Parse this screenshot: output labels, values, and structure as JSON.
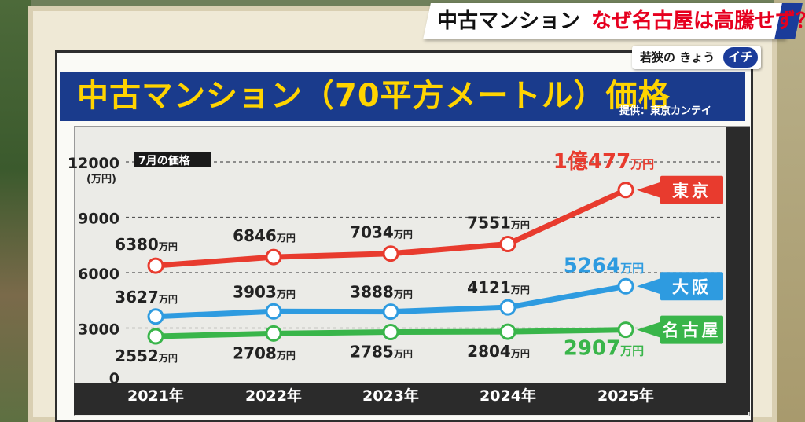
{
  "headline": {
    "part1": "中古マンション",
    "part2": "なぜ名古屋は高騰せず？"
  },
  "logo": {
    "text": "若狭の きょう",
    "badge": "イチ"
  },
  "board": {
    "title": "中古マンション（70平方メートル）価格",
    "source": "提供：東京カンテイ"
  },
  "colors": {
    "tokyo": "#e83b2e",
    "osaka": "#2e9be0",
    "nagoya": "#39b54a",
    "title_bg": "#1a3b8c",
    "title_fg": "#ffd400"
  },
  "chart_data": {
    "type": "line",
    "note": "7月の価格",
    "ylabel": "(万円)",
    "ylim": [
      0,
      12000
    ],
    "yticks": [
      "0",
      "3000",
      "6000",
      "9000",
      "12000"
    ],
    "categories": [
      "2021年",
      "2022年",
      "2023年",
      "2024年",
      "2025年"
    ],
    "series": [
      {
        "name": "東京",
        "key": "tokyo",
        "values": [
          6380,
          6846,
          7034,
          7551,
          10477
        ],
        "labels": [
          "6380",
          "6846",
          "7034",
          "7551",
          "1億477"
        ]
      },
      {
        "name": "大阪",
        "key": "osaka",
        "values": [
          3627,
          3903,
          3888,
          4121,
          5264
        ],
        "labels": [
          "3627",
          "3903",
          "3888",
          "4121",
          "5264"
        ]
      },
      {
        "name": "名古屋",
        "key": "nagoya",
        "values": [
          2552,
          2708,
          2785,
          2804,
          2907
        ],
        "labels": [
          "2552",
          "2708",
          "2785",
          "2804",
          "2907"
        ]
      }
    ],
    "unit": "万円"
  }
}
